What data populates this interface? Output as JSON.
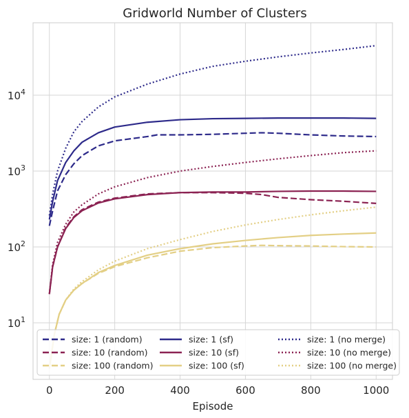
{
  "chart_data": {
    "type": "line",
    "title": "Gridworld Number of Clusters",
    "xlabel": "Episode",
    "ylabel": "",
    "xlim": [
      -50,
      1050
    ],
    "ylim": [
      1.8,
      90000
    ],
    "yscale": "log",
    "grid": true,
    "legend_position": "bottom",
    "xticks": [
      0,
      200,
      400,
      600,
      800,
      1000
    ],
    "xtick_labels": [
      "0",
      "200",
      "400",
      "600",
      "800",
      "1000"
    ],
    "yticks": [
      10,
      100,
      1000,
      10000
    ],
    "ytick_labels": [
      {
        "base": "10",
        "exp": "1"
      },
      {
        "base": "10",
        "exp": "2"
      },
      {
        "base": "10",
        "exp": "3"
      },
      {
        "base": "10",
        "exp": "4"
      }
    ],
    "colors": {
      "size_1": "#2d2a8a",
      "size_10": "#8b2252",
      "size_100": "#e3cf85"
    },
    "series": [
      {
        "name": "size: 1 (random)",
        "color": "#2d2a8a",
        "dash": "dashed",
        "x": [
          0,
          10,
          25,
          50,
          75,
          100,
          150,
          200,
          300,
          330,
          400,
          500,
          600,
          650,
          700,
          800,
          900,
          1000
        ],
        "y": [
          190,
          300,
          550,
          900,
          1250,
          1600,
          2150,
          2500,
          2850,
          3000,
          3000,
          3050,
          3150,
          3200,
          3150,
          3000,
          2900,
          2850
        ]
      },
      {
        "name": "size: 10 (random)",
        "color": "#8b2252",
        "dash": "dashed",
        "x": [
          0,
          10,
          25,
          50,
          75,
          100,
          150,
          200,
          300,
          400,
          500,
          600,
          650,
          700,
          800,
          900,
          1000
        ],
        "y": [
          24,
          55,
          100,
          180,
          250,
          310,
          390,
          440,
          500,
          520,
          520,
          510,
          490,
          450,
          420,
          400,
          375
        ]
      },
      {
        "name": "size: 100 (random)",
        "color": "#e3cf85",
        "dash": "dashed",
        "x": [
          0,
          15,
          30,
          50,
          75,
          100,
          150,
          200,
          300,
          400,
          500,
          600,
          650,
          700,
          800,
          900,
          1000
        ],
        "y": [
          2.5,
          7,
          13,
          20,
          27,
          33,
          45,
          55,
          72,
          88,
          98,
          103,
          105,
          104,
          103,
          101,
          100
        ]
      },
      {
        "name": "size: 1 (sf)",
        "color": "#2d2a8a",
        "dash": "solid",
        "x": [
          0,
          10,
          25,
          50,
          75,
          100,
          150,
          200,
          300,
          400,
          500,
          600,
          700,
          800,
          900,
          1000
        ],
        "y": [
          230,
          400,
          750,
          1300,
          1850,
          2400,
          3200,
          3800,
          4400,
          4750,
          4900,
          4950,
          5000,
          5000,
          5000,
          4950
        ]
      },
      {
        "name": "size: 10 (sf)",
        "color": "#8b2252",
        "dash": "solid",
        "x": [
          0,
          10,
          25,
          50,
          75,
          100,
          150,
          200,
          300,
          400,
          500,
          600,
          700,
          800,
          900,
          1000
        ],
        "y": [
          24,
          55,
          100,
          175,
          245,
          300,
          380,
          430,
          490,
          520,
          530,
          530,
          540,
          545,
          545,
          540
        ]
      },
      {
        "name": "size: 100 (sf)",
        "color": "#e3cf85",
        "dash": "solid",
        "x": [
          0,
          15,
          30,
          50,
          75,
          100,
          150,
          200,
          300,
          400,
          500,
          600,
          700,
          800,
          900,
          1000
        ],
        "y": [
          2.5,
          7,
          13,
          20,
          27,
          33,
          46,
          57,
          78,
          95,
          110,
          122,
          133,
          142,
          148,
          153
        ]
      },
      {
        "name": "size: 1 (no merge)",
        "color": "#2d2a8a",
        "dash": "dotted",
        "x": [
          0,
          10,
          25,
          50,
          75,
          100,
          150,
          200,
          300,
          400,
          500,
          600,
          700,
          800,
          900,
          1000
        ],
        "y": [
          260,
          500,
          1000,
          2000,
          3300,
          4500,
          7000,
          9500,
          14000,
          19000,
          24000,
          28000,
          32000,
          36000,
          40000,
          45000
        ]
      },
      {
        "name": "size: 10 (no merge)",
        "color": "#8b2252",
        "dash": "dotted",
        "x": [
          0,
          10,
          25,
          50,
          75,
          100,
          150,
          200,
          300,
          400,
          500,
          600,
          700,
          800,
          900,
          1000
        ],
        "y": [
          24,
          60,
          115,
          200,
          290,
          360,
          500,
          620,
          820,
          1000,
          1150,
          1300,
          1450,
          1600,
          1750,
          1850
        ]
      },
      {
        "name": "size: 100 (no merge)",
        "color": "#e3cf85",
        "dash": "dotted",
        "x": [
          0,
          15,
          30,
          50,
          75,
          100,
          150,
          200,
          300,
          400,
          500,
          600,
          700,
          800,
          900,
          1000
        ],
        "y": [
          2.5,
          7,
          13,
          20,
          28,
          35,
          50,
          65,
          95,
          125,
          160,
          195,
          230,
          265,
          300,
          335
        ]
      }
    ]
  }
}
